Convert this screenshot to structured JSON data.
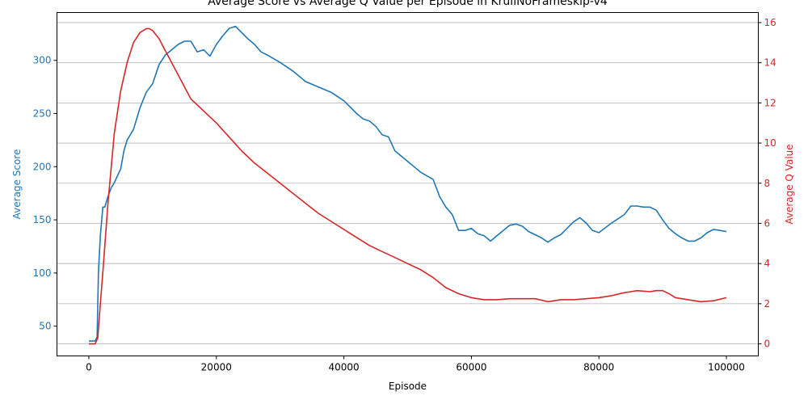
{
  "chart_data": {
    "type": "line",
    "title": "Average Score vs Average Q Value per Episode in KrullNoFrameskip-v4",
    "xlabel": "Episode",
    "ylabel_left": "Average Score",
    "ylabel_right": "Average Q Value",
    "xlim": [
      -5000,
      105000
    ],
    "ylim_left": [
      22,
      345
    ],
    "ylim_right": [
      -0.6,
      16.5
    ],
    "x_ticks": [
      0,
      20000,
      40000,
      60000,
      80000,
      100000
    ],
    "x_tick_labels": [
      "0",
      "20000",
      "40000",
      "60000",
      "80000",
      "100000"
    ],
    "left_ticks": [
      50,
      100,
      150,
      200,
      250,
      300
    ],
    "left_tick_labels": [
      "50",
      "100",
      "150",
      "200",
      "250",
      "300"
    ],
    "right_ticks": [
      0,
      2,
      4,
      6,
      8,
      10,
      12,
      14,
      16
    ],
    "right_tick_labels": [
      "0",
      "2",
      "4",
      "6",
      "8",
      "10",
      "12",
      "14",
      "16"
    ],
    "grid": "horizontal lines at right-axis ticks",
    "legend": "none",
    "colors": {
      "score": "#1f77b4",
      "q": "#d62728",
      "grid": "#b0b0b0",
      "axis": "#000000"
    },
    "series": [
      {
        "axis": "left",
        "x": [
          0,
          1000,
          1300,
          1500,
          1800,
          2200,
          2500,
          3000,
          3500,
          4000,
          5000,
          5500,
          6000,
          7000,
          8000,
          9000,
          10000,
          11000,
          12000,
          13000,
          14000,
          15000,
          16000,
          17000,
          18000,
          19000,
          20000,
          21000,
          22000,
          23000,
          24000,
          25000,
          26000,
          27000,
          28000,
          30000,
          32000,
          34000,
          36000,
          38000,
          40000,
          42000,
          43000,
          44000,
          45000,
          46000,
          47000,
          48000,
          50000,
          52000,
          54000,
          55000,
          56000,
          57000,
          58000,
          59000,
          60000,
          61000,
          62000,
          63000,
          64000,
          65000,
          66000,
          67000,
          68000,
          69000,
          70000,
          71000,
          72000,
          73000,
          74000,
          75000,
          76000,
          77000,
          78000,
          79000,
          80000,
          82000,
          84000,
          85000,
          86000,
          87000,
          88000,
          89000,
          90000,
          91000,
          92000,
          93000,
          94000,
          95000,
          96000,
          97000,
          98000,
          99000,
          100000
        ],
        "y": [
          36,
          36,
          40,
          100,
          135,
          162,
          162,
          172,
          180,
          185,
          198,
          215,
          225,
          235,
          255,
          270,
          278,
          296,
          305,
          310,
          315,
          318,
          318,
          308,
          310,
          304,
          315,
          323,
          330,
          332,
          326,
          320,
          315,
          308,
          305,
          298,
          290,
          280,
          275,
          270,
          262,
          250,
          245,
          243,
          238,
          230,
          228,
          215,
          205,
          195,
          188,
          172,
          162,
          155,
          140,
          140,
          142,
          137,
          135,
          130,
          135,
          140,
          145,
          146,
          144,
          139,
          136,
          133,
          129,
          133,
          136,
          142,
          148,
          152,
          147,
          140,
          138,
          147,
          155,
          163,
          163,
          162,
          162,
          159,
          150,
          142,
          137,
          133,
          130,
          130,
          133,
          138,
          141,
          140,
          139
        ]
      },
      {
        "axis": "right",
        "x": [
          0,
          1000,
          1400,
          1800,
          2300,
          3000,
          4000,
          5000,
          6000,
          7000,
          8000,
          9000,
          9500,
          10000,
          11000,
          12000,
          13000,
          14000,
          15000,
          16000,
          18000,
          20000,
          22000,
          24000,
          26000,
          28000,
          30000,
          32000,
          34000,
          36000,
          38000,
          40000,
          42000,
          44000,
          46000,
          48000,
          50000,
          52000,
          54000,
          56000,
          58000,
          60000,
          62000,
          64000,
          66000,
          68000,
          70000,
          72000,
          74000,
          76000,
          78000,
          80000,
          82000,
          84000,
          85000,
          86000,
          88000,
          89000,
          90000,
          91000,
          92000,
          94000,
          95000,
          96000,
          98000,
          100000
        ],
        "y": [
          0,
          0,
          0.3,
          2.0,
          4.0,
          7.0,
          10.5,
          12.6,
          14.0,
          15.0,
          15.5,
          15.7,
          15.7,
          15.6,
          15.2,
          14.6,
          14.0,
          13.4,
          12.8,
          12.2,
          11.6,
          11.0,
          10.3,
          9.6,
          9.0,
          8.5,
          8.0,
          7.5,
          7.0,
          6.5,
          6.1,
          5.7,
          5.3,
          4.9,
          4.6,
          4.3,
          4.0,
          3.7,
          3.3,
          2.8,
          2.5,
          2.3,
          2.2,
          2.2,
          2.25,
          2.25,
          2.25,
          2.1,
          2.2,
          2.2,
          2.25,
          2.3,
          2.4,
          2.55,
          2.6,
          2.65,
          2.6,
          2.65,
          2.65,
          2.5,
          2.3,
          2.2,
          2.15,
          2.1,
          2.15,
          2.3
        ]
      }
    ]
  }
}
